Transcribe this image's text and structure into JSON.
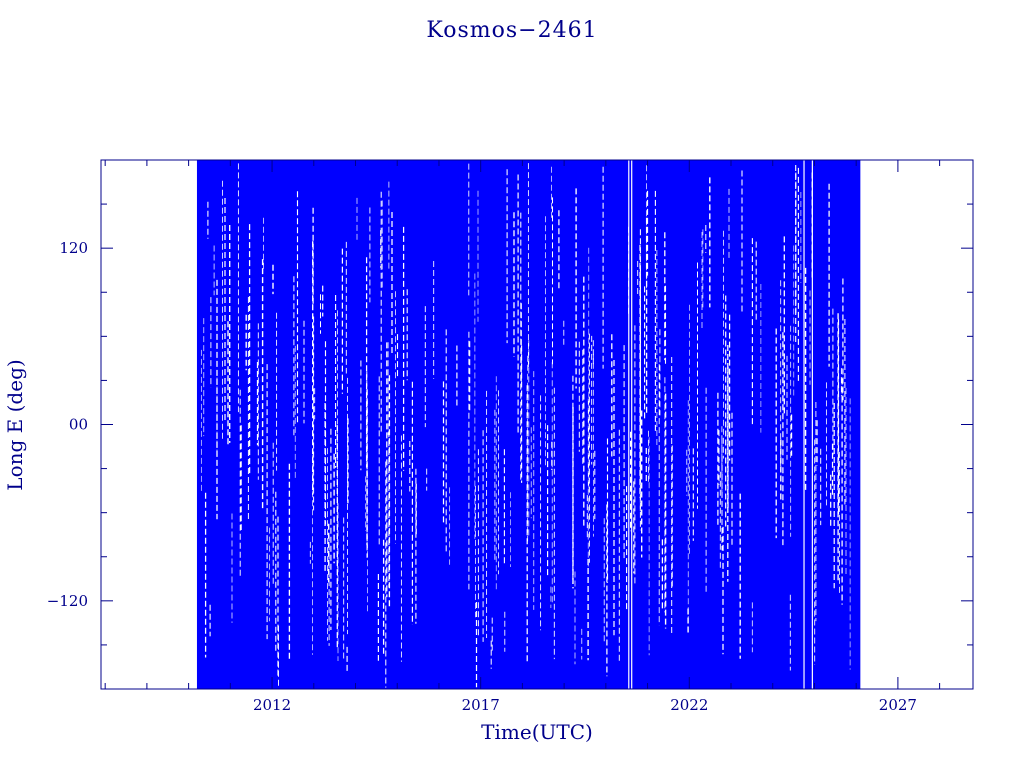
{
  "chart_data": {
    "type": "scatter",
    "title": "Kosmos−2461",
    "xlabel": "Time(UTC)",
    "ylabel": "Long E (deg)",
    "xlim": [
      2007.9,
      2028.8
    ],
    "ylim": [
      -180,
      180
    ],
    "x_ticks": [
      2012,
      2017,
      2022,
      2027
    ],
    "x_tick_labels": [
      "2012",
      "2017",
      "2022",
      "2027"
    ],
    "y_ticks": [
      -120,
      0,
      120
    ],
    "y_tick_labels": [
      "−120",
      "00",
      "120"
    ],
    "grid": false,
    "color": "#0000ff",
    "frame_color": "#00008b",
    "data_start": 2010.2,
    "data_end": 2026.1,
    "description": "Dense plot of longitude east over time; points sweep the full -180 to 180 range between 2010.2 and 2026.1."
  }
}
